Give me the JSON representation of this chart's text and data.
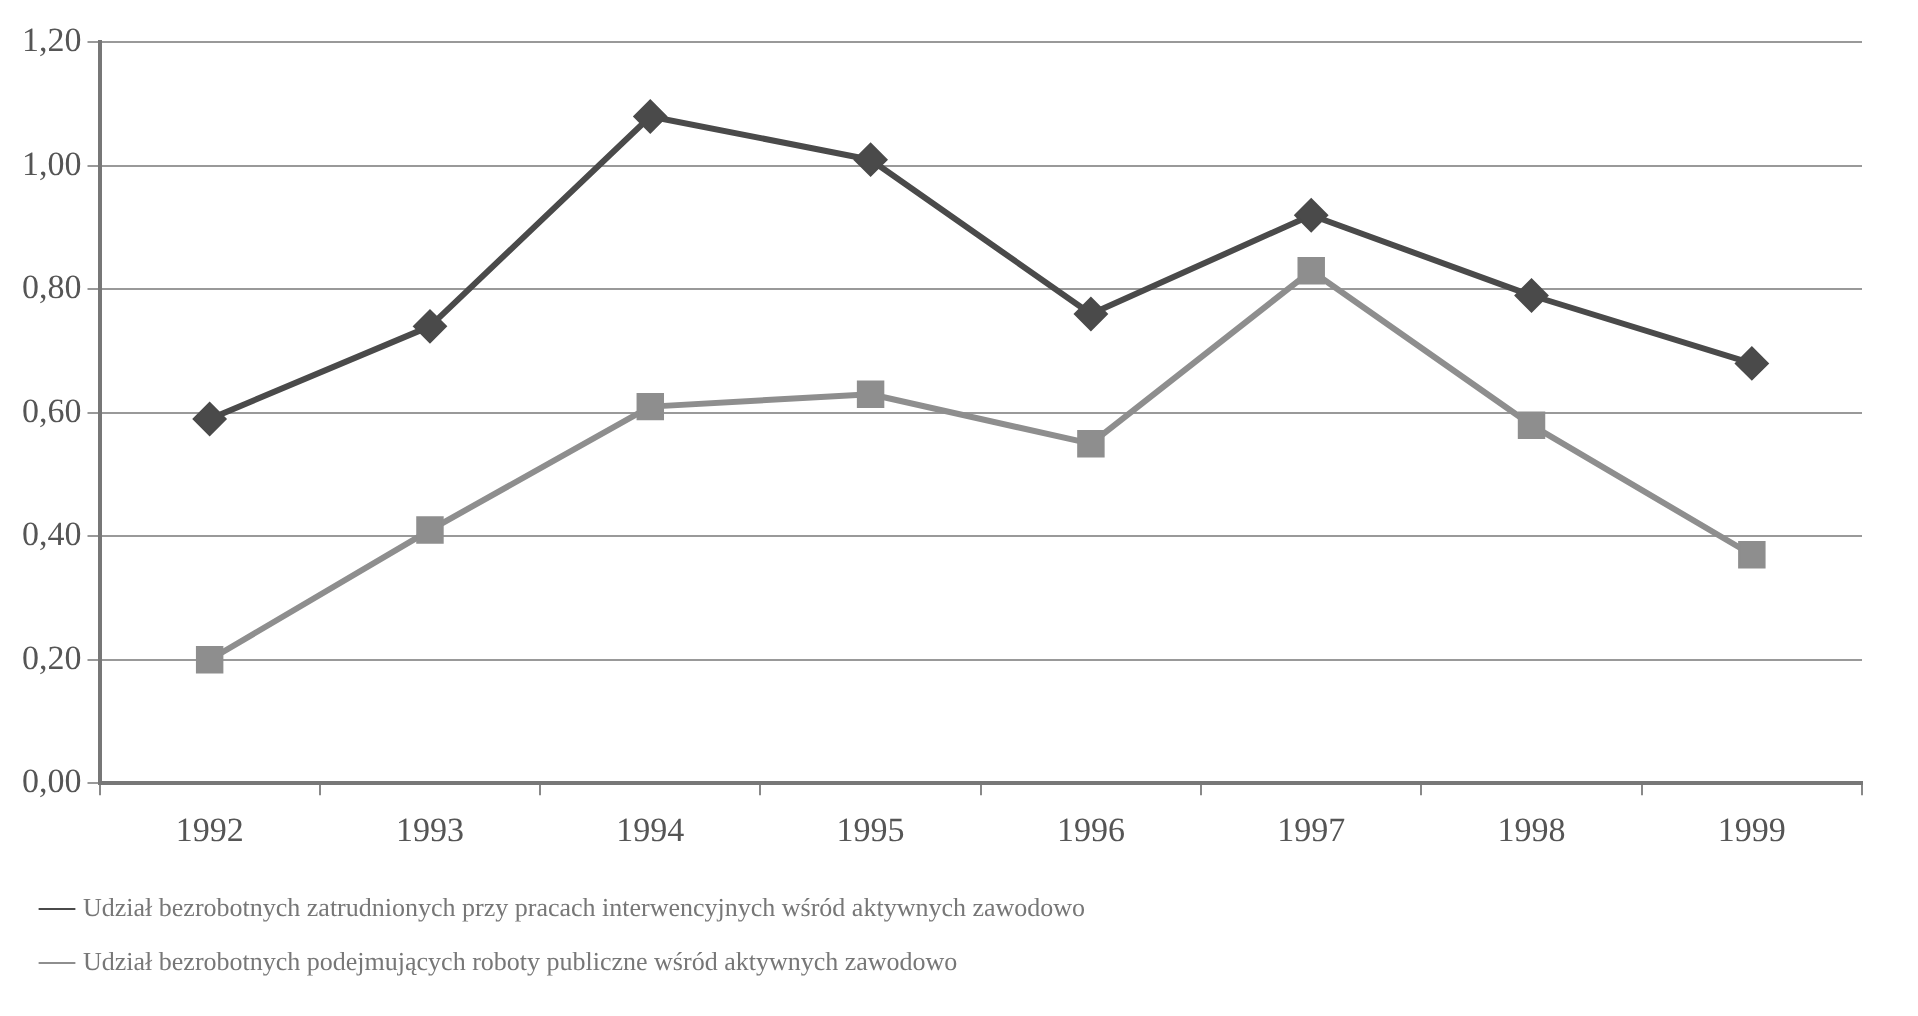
{
  "chart_data": {
    "type": "line",
    "categories": [
      "1992",
      "1993",
      "1994",
      "1995",
      "1996",
      "1997",
      "1998",
      "1999"
    ],
    "series": [
      {
        "name": "Udział bezrobotnych zatrudnionych przy pracach interwencyjnych wśród aktywnych zawodowo",
        "color": "#4a4a4a",
        "marker": "diamond",
        "values": [
          0.59,
          0.74,
          1.08,
          1.01,
          0.76,
          0.92,
          0.79,
          0.68
        ]
      },
      {
        "name": "Udział bezrobotnych podejmujących roboty publiczne wśród aktywnych zawodowo",
        "color": "#8e8e8e",
        "marker": "square",
        "values": [
          0.2,
          0.41,
          0.61,
          0.63,
          0.55,
          0.83,
          0.58,
          0.37
        ]
      }
    ],
    "ylim": [
      0,
      1.2
    ],
    "yticks": [
      {
        "value": 0,
        "label": "0,00"
      },
      {
        "value": 0.2,
        "label": "0,20"
      },
      {
        "value": 0.4,
        "label": "0,40"
      },
      {
        "value": 0.6,
        "label": "0,60"
      },
      {
        "value": 0.8,
        "label": "0,80"
      },
      {
        "value": 1,
        "label": "1,00"
      },
      {
        "value": 1.2,
        "label": "1,20"
      }
    ],
    "grid": "y",
    "legend": "bottom"
  }
}
